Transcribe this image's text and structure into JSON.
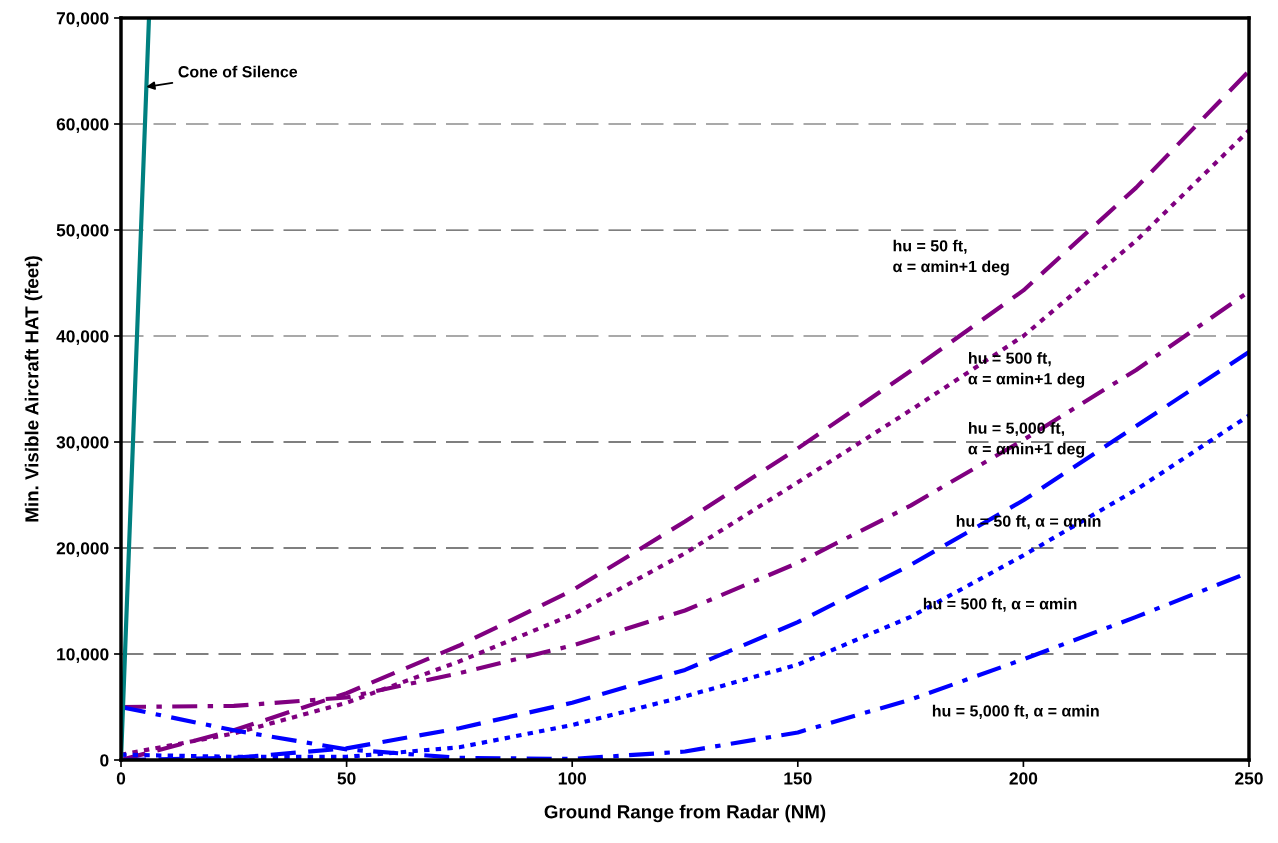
{
  "chart_data": {
    "type": "line",
    "xlabel": "Ground Range from Radar (NM)",
    "ylabel": "Min. Visible Aircraft HAT (feet)",
    "x": [
      0,
      25,
      50,
      75,
      100,
      125,
      150,
      175,
      200,
      225,
      250
    ],
    "xlim": [
      0,
      250
    ],
    "xticks": [
      0,
      50,
      100,
      150,
      200,
      250
    ],
    "ylim": [
      0,
      70000
    ],
    "yticks": [
      {
        "value": 0,
        "label": "0"
      },
      {
        "value": 10000,
        "label": "10,000"
      },
      {
        "value": 20000,
        "label": "20,000"
      },
      {
        "value": 30000,
        "label": "30,000"
      },
      {
        "value": 40000,
        "label": "40,000"
      },
      {
        "value": 50000,
        "label": "50,000"
      },
      {
        "value": 60000,
        "label": "60,000"
      },
      {
        "value": 70000,
        "label": "70,000"
      }
    ],
    "grid": "y",
    "legend": false,
    "marker": "none",
    "series": [
      {
        "name": "hu = 50 ft,\nα = αmin+1 deg",
        "color": "#800080",
        "line_style": "dashed",
        "values": [
          0,
          2800,
          6300,
          10800,
          16000,
          22500,
          29400,
          36700,
          44300,
          54000,
          65000
        ]
      },
      {
        "name": "hu = 500 ft,\nα = αmin+1 deg",
        "color": "#800080",
        "line_style": "dotted",
        "values": [
          500,
          2500,
          5400,
          9300,
          13700,
          19500,
          26200,
          33000,
          40000,
          49000,
          59400
        ]
      },
      {
        "name": "hu = 5,000 ft,\nα = αmin+1 deg",
        "color": "#800080",
        "line_style": "dashdot",
        "values": [
          5000,
          5100,
          5900,
          8200,
          10800,
          14100,
          18600,
          24000,
          30200,
          36800,
          44200
        ]
      },
      {
        "name": "hu = 50 ft, α = αmin",
        "color": "#0000ff",
        "line_style": "dashed",
        "values": [
          0,
          200,
          1100,
          3000,
          5400,
          8500,
          13000,
          18400,
          24500,
          31500,
          38500
        ]
      },
      {
        "name": "hu = 500 ft, α = αmin",
        "color": "#0000ff",
        "line_style": "dotted",
        "values": [
          500,
          300,
          300,
          1200,
          3300,
          6000,
          9000,
          13500,
          19300,
          25500,
          32500
        ]
      },
      {
        "name": "hu = 5,000 ft, α = αmin",
        "color": "#0000ff",
        "line_style": "dashdot",
        "values": [
          5000,
          2800,
          1000,
          200,
          100,
          800,
          2600,
          5700,
          9500,
          13500,
          17700
        ]
      },
      {
        "color": "#008080",
        "line_style": "solid",
        "x": [
          0,
          6.2
        ],
        "values": [
          0,
          70000
        ]
      }
    ],
    "annotations": [
      {
        "text": "Cone of Silence",
        "x": 5.6,
        "y": 63500
      }
    ]
  }
}
